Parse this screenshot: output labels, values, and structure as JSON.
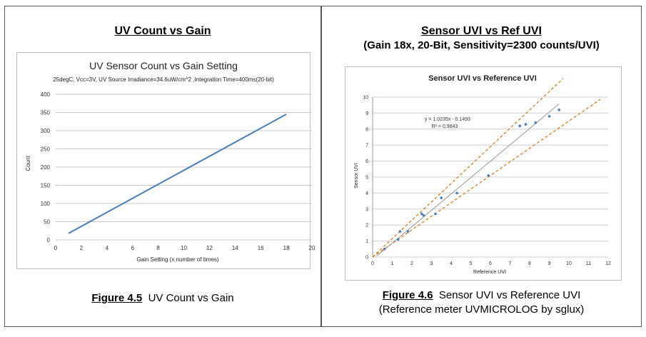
{
  "left": {
    "heading": "UV Count vs Gain",
    "caption_label": "Figure 4.5",
    "caption_text": "UV Count vs Gain"
  },
  "right": {
    "heading_line1": "Sensor UVI vs Ref UVI",
    "heading_line2": "(Gain 18x, 20-Bit, Sensitivity=2300 counts/UVI)",
    "caption_label": "Figure 4.6",
    "caption_text": "Sensor UVI vs Reference UVI",
    "caption_line2": "(Reference meter  UVMICROLOG by sglux)"
  },
  "chart_data": [
    {
      "type": "line",
      "title": "UV Sensor Count vs Gain Setting",
      "subtitle": "25degC, Vcc=3V, UV Source Irradiance=34.6uW/cm^2 ,Integration Time=400ms(20-bit)",
      "xlabel": "Gain Setting (x number of times)",
      "ylabel": "Count",
      "xlim": [
        0,
        20
      ],
      "ylim": [
        0,
        400
      ],
      "xticks": [
        0,
        2,
        4,
        6,
        8,
        10,
        12,
        14,
        16,
        18,
        20
      ],
      "yticks": [
        0,
        50,
        100,
        150,
        200,
        250,
        300,
        350,
        400
      ],
      "grid": "horizontal",
      "legend": "none",
      "series": [
        {
          "x": [
            1,
            18
          ],
          "y": [
            18,
            345
          ],
          "color": "#4a7ebb"
        }
      ]
    },
    {
      "type": "scatter",
      "title": "Sensor UVI vs Reference UVI",
      "xlabel": "Reference UVI",
      "ylabel": "Sensor UVI",
      "xlim": [
        0,
        12
      ],
      "ylim": [
        0,
        10
      ],
      "xticks": [
        0,
        1,
        2,
        3,
        4,
        5,
        6,
        7,
        8,
        9,
        10,
        11,
        12
      ],
      "yticks": [
        0,
        1,
        2,
        3,
        4,
        5,
        6,
        7,
        8,
        9,
        10
      ],
      "grid": "horizontal",
      "legend": "none",
      "points": {
        "x": [
          0.6,
          1.3,
          1.4,
          1.8,
          2.5,
          2.6,
          3.2,
          3.5,
          4.3,
          5.9,
          7.5,
          7.8,
          8.3,
          9.0,
          9.5
        ],
        "y": [
          0.5,
          1.1,
          1.6,
          1.6,
          2.7,
          2.6,
          2.7,
          3.7,
          4.0,
          5.1,
          8.2,
          8.3,
          8.4,
          8.8,
          9.2
        ],
        "color": "#4a7ebb"
      },
      "trendline": {
        "slope": 1.0235,
        "intercept": -0.1493,
        "x_range": [
          0.2,
          9.5
        ],
        "color": "#9a9a9a"
      },
      "bounds": [
        {
          "slope": 1.15,
          "intercept": 0,
          "x_range": [
            0,
            9.7
          ],
          "color": "#e07b1a",
          "style": "dashed"
        },
        {
          "slope": 0.85,
          "intercept": 0,
          "x_range": [
            0,
            11.6
          ],
          "color": "#e07b1a",
          "style": "dashed"
        }
      ],
      "equation": "y = 1.0235x - 0.1493",
      "r_squared": "R² = 0.9843"
    }
  ]
}
